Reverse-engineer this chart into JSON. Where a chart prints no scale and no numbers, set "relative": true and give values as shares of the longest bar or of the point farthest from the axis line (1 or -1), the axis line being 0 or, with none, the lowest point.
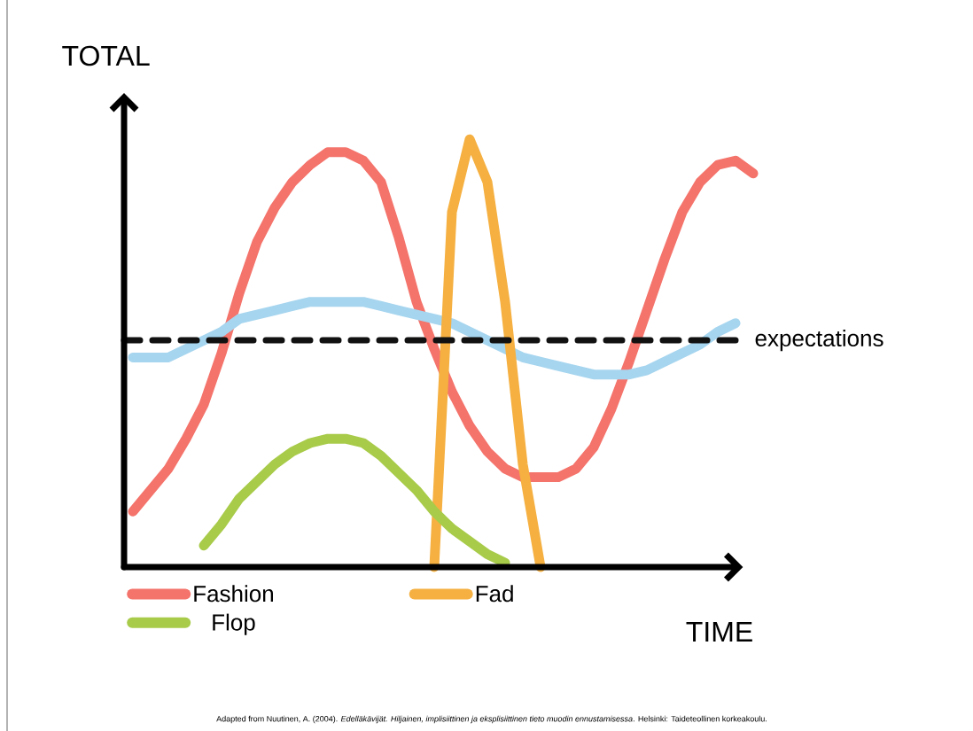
{
  "chart_data": {
    "type": "line",
    "relative": true,
    "xlabel": "TIME",
    "ylabel": "TOTAL",
    "categories": [
      null,
      null,
      null,
      null,
      null,
      null,
      null,
      null,
      null,
      null,
      null,
      null,
      null,
      null,
      null,
      null,
      null,
      null,
      null,
      null,
      null,
      null,
      null,
      null,
      null,
      null,
      null,
      null,
      null,
      null,
      null,
      null,
      null,
      null,
      null,
      null
    ],
    "series": [
      {
        "name": "Fashion",
        "color": "#f4736b",
        "values": [
          0.13,
          0.18,
          0.23,
          0.3,
          0.38,
          0.5,
          0.64,
          0.76,
          0.84,
          0.9,
          0.94,
          0.97,
          0.97,
          0.95,
          0.9,
          0.77,
          0.62,
          0.51,
          0.41,
          0.33,
          0.27,
          0.23,
          0.21,
          0.21,
          0.21,
          0.23,
          0.28,
          0.37,
          0.48,
          0.6,
          0.72,
          0.83,
          0.9,
          0.94,
          0.95,
          0.92
        ]
      },
      {
        "color": "#a6d5ef",
        "values": [
          0.49,
          0.49,
          0.49,
          0.51,
          0.53,
          0.55,
          0.58,
          0.59,
          0.6,
          0.61,
          0.62,
          0.62,
          0.62,
          0.62,
          0.61,
          0.6,
          0.59,
          0.58,
          0.57,
          0.55,
          0.53,
          0.51,
          0.49,
          0.48,
          0.47,
          0.46,
          0.45,
          0.45,
          0.45,
          0.46,
          0.48,
          0.5,
          0.52,
          0.55,
          0.57,
          null
        ]
      },
      {
        "name": "Fad",
        "color": "#f5b041",
        "values": [
          null,
          null,
          null,
          null,
          null,
          null,
          null,
          null,
          null,
          null,
          null,
          null,
          null,
          null,
          null,
          null,
          null,
          0,
          0.83,
          1.0,
          0.9,
          0.62,
          0.24,
          0,
          null,
          null,
          null,
          null,
          null,
          null,
          null,
          null,
          null,
          null,
          null,
          null
        ]
      },
      {
        "name": "Flop",
        "color": "#a8cb4a",
        "values": [
          null,
          null,
          null,
          null,
          0.05,
          0.1,
          0.16,
          0.2,
          0.24,
          0.27,
          0.29,
          0.3,
          0.3,
          0.29,
          0.26,
          0.22,
          0.18,
          0.13,
          0.09,
          0.06,
          0.03,
          0.01,
          null,
          null,
          null,
          null,
          null,
          null,
          null,
          null,
          null,
          null,
          null,
          null,
          null,
          null
        ]
      }
    ],
    "ref_lines": [
      {
        "axis": "y",
        "value": 0.53,
        "label": "expectations",
        "color": "#111111",
        "line_style": "dashed"
      }
    ],
    "legend": "bottom",
    "line_style": "solid",
    "marker": "none",
    "annotations": [
      "Adapted from Nuutinen, A. (2004). *Edelläkävijät. Hiljainen, implisiittinen ja eksplisiittinen tieto muodin ennustamisessa*. Helsinki: Taideteollinen korkeakoulu."
    ]
  }
}
